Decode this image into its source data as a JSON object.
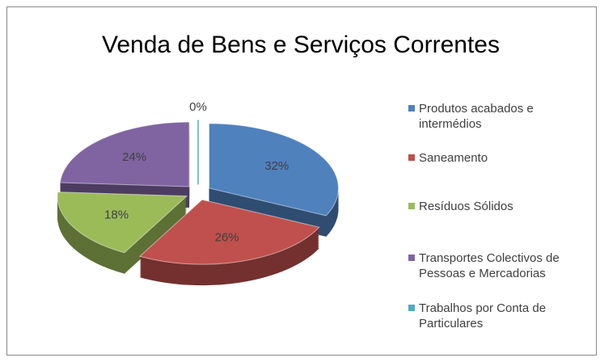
{
  "chart_data": {
    "type": "pie",
    "title": "Venda de Bens e Serviços Correntes",
    "categories": [
      "Produtos acabados e intermédios",
      "Saneamento",
      "Resíduos Sólidos",
      "Transportes Colectivos de Pessoas e Mercadorias",
      "Trabalhos por Conta de Particulares"
    ],
    "values": [
      32,
      26,
      18,
      24,
      0
    ],
    "value_labels": [
      "32%",
      "26%",
      "18%",
      "24%",
      "0%"
    ],
    "colors": [
      "#4f81bd",
      "#c0504d",
      "#9bbb59",
      "#8064a2",
      "#4bacc6"
    ],
    "legend": "right"
  }
}
